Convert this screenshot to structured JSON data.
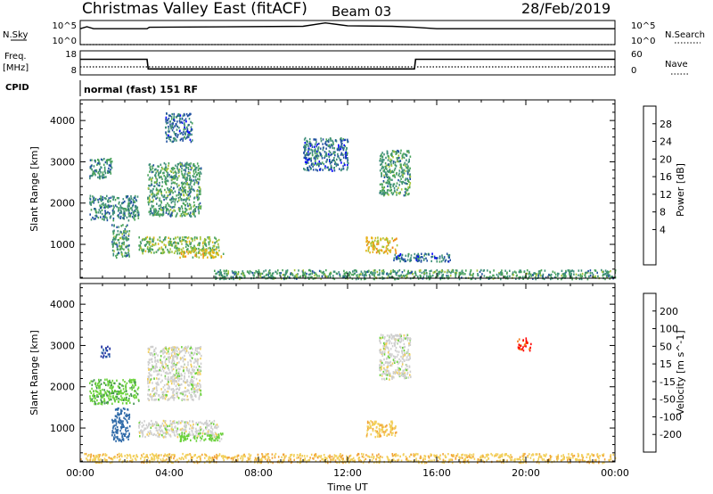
{
  "header": {
    "title": "Christmas Valley East (fitACF)",
    "beam": "Beam 03",
    "date": "28/Feb/2019"
  },
  "panels": {
    "nsky": {
      "label": "N.Sky",
      "tick_top": "10^5",
      "tick_bottom": "10^0",
      "right_label": "N.Search",
      "right_tick_top": "10^5",
      "right_tick_bottom": "10^0"
    },
    "freq": {
      "label_line1": "Freq.",
      "label_line2": "[MHz]",
      "tick_top": "18",
      "tick_bottom": "8",
      "right_label": "Nave",
      "right_tick_top": "60",
      "right_tick_bottom": "0"
    },
    "cpid": {
      "label": "CPID",
      "value": "normal (fast) 151 RF"
    }
  },
  "colorbars": {
    "power": {
      "label": "Power [dB]",
      "ticks": [
        "28",
        "24",
        "20",
        "16",
        "12",
        "8",
        "4"
      ],
      "colors": [
        "#0000ff",
        "#2050a0",
        "#3f8f7a",
        "#4aa35a",
        "#a6c53a",
        "#e6b417",
        "#f08a17",
        "#f05a17",
        "#ff0000"
      ]
    },
    "velocity": {
      "label": "Velocity [m s^-1]",
      "ticks": [
        "200",
        "100",
        "50",
        "15",
        "-15",
        "-50",
        "-100",
        "-200"
      ],
      "colors": [
        "#1c2fa0",
        "#2f6aa8",
        "#3f8f4f",
        "#6ad23a",
        "#cfcfcf",
        "#f2cf5a",
        "#f2a33a",
        "#f27a17",
        "#ff0000"
      ]
    }
  },
  "axes": {
    "ylabel": "Slant Range [km]",
    "yticks": [
      "1000",
      "2000",
      "3000",
      "4000"
    ],
    "xlabel": "Time UT",
    "xticks": [
      "00:00",
      "04:00",
      "08:00",
      "12:00",
      "16:00",
      "20:00",
      "00:00"
    ]
  },
  "chart_data": [
    {
      "type": "line",
      "name": "N.Sky / N.Search",
      "x_hours": [
        0,
        0.3,
        0.6,
        3,
        3.1,
        10,
        11,
        12,
        14,
        15,
        16,
        24
      ],
      "y_log": [
        3.3,
        3.7,
        3.3,
        3.3,
        3.6,
        3.8,
        4.5,
        3.9,
        3.8,
        3.6,
        3.3,
        3.3
      ]
    },
    {
      "type": "line",
      "name": "Freq. / Nave",
      "x_hours": [
        0,
        3,
        3.05,
        15,
        15.05,
        24
      ],
      "freq_mhz": [
        14.5,
        14.5,
        10.5,
        10.5,
        14.5,
        14.5
      ],
      "nave_level": 20
    },
    {
      "type": "heatmap",
      "name": "Power",
      "xlim_hours": [
        0,
        24
      ],
      "ylim_km": [
        180,
        4500
      ],
      "regions": [
        {
          "x": [
            0.4,
            2.6
          ],
          "y": [
            1600,
            2200
          ],
          "level": 8
        },
        {
          "x": [
            1.4,
            2.2
          ],
          "y": [
            700,
            1500
          ],
          "level": 10
        },
        {
          "x": [
            2.6,
            6.2
          ],
          "y": [
            800,
            1200
          ],
          "level": 14
        },
        {
          "x": [
            4.4,
            6.4
          ],
          "y": [
            700,
            900
          ],
          "level": 18
        },
        {
          "x": [
            3.0,
            5.4
          ],
          "y": [
            1700,
            3000
          ],
          "level": 10
        },
        {
          "x": [
            3.8,
            5.0
          ],
          "y": [
            3500,
            4200
          ],
          "level": 6
        },
        {
          "x": [
            0.4,
            1.4
          ],
          "y": [
            2600,
            3100
          ],
          "level": 8
        },
        {
          "x": [
            10.0,
            12.0
          ],
          "y": [
            2800,
            3600
          ],
          "level": 6
        },
        {
          "x": [
            13.4,
            14.8
          ],
          "y": [
            2200,
            3300
          ],
          "level": 10
        },
        {
          "x": [
            12.8,
            14.2
          ],
          "y": [
            800,
            1200
          ],
          "level": 20
        },
        {
          "x": [
            14.0,
            16.6
          ],
          "y": [
            600,
            800
          ],
          "level": 6
        },
        {
          "x": [
            6.0,
            24.0
          ],
          "y": [
            180,
            400
          ],
          "level": 10
        }
      ]
    },
    {
      "type": "heatmap",
      "name": "Velocity",
      "xlim_hours": [
        0,
        24
      ],
      "ylim_km": [
        180,
        4500
      ],
      "regions": [
        {
          "x": [
            0.4,
            2.6
          ],
          "y": [
            1600,
            2200
          ],
          "level": 40
        },
        {
          "x": [
            1.4,
            2.2
          ],
          "y": [
            700,
            1500
          ],
          "level": 120
        },
        {
          "x": [
            2.6,
            6.2
          ],
          "y": [
            800,
            1200
          ],
          "level": 0
        },
        {
          "x": [
            4.4,
            6.4
          ],
          "y": [
            700,
            900
          ],
          "level": 30
        },
        {
          "x": [
            3.0,
            5.4
          ],
          "y": [
            1700,
            3000
          ],
          "level": 0
        },
        {
          "x": [
            0.9,
            1.3
          ],
          "y": [
            2700,
            3000
          ],
          "level": 200
        },
        {
          "x": [
            13.4,
            14.8
          ],
          "y": [
            2200,
            3300
          ],
          "level": 0
        },
        {
          "x": [
            12.8,
            14.2
          ],
          "y": [
            800,
            1200
          ],
          "level": -40
        },
        {
          "x": [
            19.6,
            20.2
          ],
          "y": [
            2900,
            3200
          ],
          "level": -200
        },
        {
          "x": [
            0.0,
            24.0
          ],
          "y": [
            180,
            400
          ],
          "level": -40
        }
      ]
    }
  ]
}
